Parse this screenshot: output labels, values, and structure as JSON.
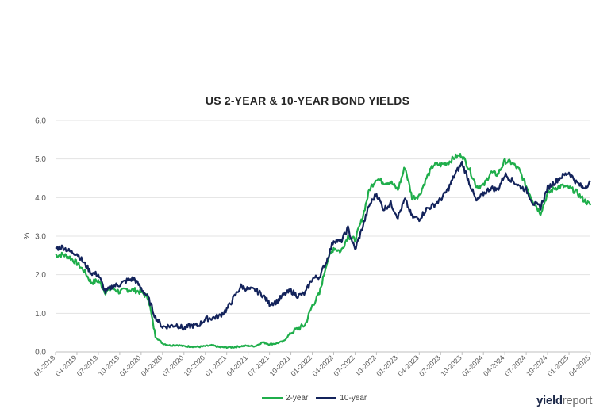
{
  "chart_data": {
    "type": "line",
    "title": "US 2-YEAR & 10-YEAR BOND YIELDS",
    "ylabel": "%",
    "xlabel": "",
    "ylim": [
      0.0,
      6.0
    ],
    "yticks": [
      "0.0",
      "1.0",
      "2.0",
      "3.0",
      "4.0",
      "5.0",
      "6.0"
    ],
    "xlim": [
      "2019-01",
      "2025-04"
    ],
    "xticks": [
      "01-2019",
      "04-2019",
      "07-2019",
      "10-2019",
      "01-2020",
      "04-2020",
      "07-2020",
      "10-2020",
      "01-2021",
      "04-2021",
      "07-2021",
      "10-2021",
      "01-2022",
      "04-2022",
      "07-2022",
      "10-2022",
      "01-2023",
      "04-2023",
      "07-2023",
      "10-2023",
      "01-2024",
      "04-2024",
      "07-2024",
      "10-2024",
      "01-2025",
      "04-2025"
    ],
    "grid": "horizontal",
    "legend_position": "bottom",
    "series": [
      {
        "name": "2-year",
        "color": "#1fae4b",
        "points": [
          [
            "2019-01-01",
            2.5
          ],
          [
            "2019-02-01",
            2.52
          ],
          [
            "2019-03-01",
            2.45
          ],
          [
            "2019-04-01",
            2.3
          ],
          [
            "2019-05-01",
            2.1
          ],
          [
            "2019-06-01",
            1.8
          ],
          [
            "2019-07-01",
            1.85
          ],
          [
            "2019-08-01",
            1.55
          ],
          [
            "2019-09-01",
            1.65
          ],
          [
            "2019-10-01",
            1.55
          ],
          [
            "2019-11-01",
            1.62
          ],
          [
            "2019-12-01",
            1.6
          ],
          [
            "2020-01-01",
            1.55
          ],
          [
            "2020-02-01",
            1.4
          ],
          [
            "2020-03-01",
            0.4
          ],
          [
            "2020-04-01",
            0.22
          ],
          [
            "2020-05-01",
            0.17
          ],
          [
            "2020-06-01",
            0.18
          ],
          [
            "2020-07-01",
            0.15
          ],
          [
            "2020-08-01",
            0.14
          ],
          [
            "2020-09-01",
            0.13
          ],
          [
            "2020-10-01",
            0.15
          ],
          [
            "2020-11-01",
            0.17
          ],
          [
            "2020-12-01",
            0.12
          ],
          [
            "2021-01-01",
            0.12
          ],
          [
            "2021-02-01",
            0.12
          ],
          [
            "2021-03-01",
            0.15
          ],
          [
            "2021-04-01",
            0.16
          ],
          [
            "2021-05-01",
            0.15
          ],
          [
            "2021-06-01",
            0.25
          ],
          [
            "2021-07-01",
            0.2
          ],
          [
            "2021-08-01",
            0.22
          ],
          [
            "2021-09-01",
            0.28
          ],
          [
            "2021-10-01",
            0.5
          ],
          [
            "2021-11-01",
            0.6
          ],
          [
            "2021-12-01",
            0.7
          ],
          [
            "2022-01-01",
            1.2
          ],
          [
            "2022-02-01",
            1.5
          ],
          [
            "2022-03-01",
            2.3
          ],
          [
            "2022-04-01",
            2.7
          ],
          [
            "2022-05-01",
            2.6
          ],
          [
            "2022-06-01",
            3.0
          ],
          [
            "2022-07-01",
            2.9
          ],
          [
            "2022-08-01",
            3.45
          ],
          [
            "2022-09-01",
            4.2
          ],
          [
            "2022-10-01",
            4.5
          ],
          [
            "2022-11-01",
            4.4
          ],
          [
            "2022-12-01",
            4.4
          ],
          [
            "2023-01-01",
            4.2
          ],
          [
            "2023-02-01",
            4.8
          ],
          [
            "2023-03-01",
            4.0
          ],
          [
            "2023-04-01",
            4.05
          ],
          [
            "2023-05-01",
            4.5
          ],
          [
            "2023-06-01",
            4.85
          ],
          [
            "2023-07-01",
            4.85
          ],
          [
            "2023-08-01",
            4.9
          ],
          [
            "2023-09-01",
            5.05
          ],
          [
            "2023-10-01",
            5.1
          ],
          [
            "2023-11-01",
            4.75
          ],
          [
            "2023-12-01",
            4.3
          ],
          [
            "2024-01-01",
            4.3
          ],
          [
            "2024-02-01",
            4.65
          ],
          [
            "2024-03-01",
            4.6
          ],
          [
            "2024-04-01",
            4.95
          ],
          [
            "2024-05-01",
            4.9
          ],
          [
            "2024-06-01",
            4.72
          ],
          [
            "2024-07-01",
            4.3
          ],
          [
            "2024-08-01",
            3.9
          ],
          [
            "2024-09-01",
            3.6
          ],
          [
            "2024-10-01",
            4.1
          ],
          [
            "2024-11-01",
            4.25
          ],
          [
            "2024-12-01",
            4.3
          ],
          [
            "2025-01-01",
            4.25
          ],
          [
            "2025-02-01",
            4.15
          ],
          [
            "2025-03-01",
            3.95
          ],
          [
            "2025-04-01",
            3.8
          ]
        ]
      },
      {
        "name": "10-year",
        "color": "#13235b",
        "points": [
          [
            "2019-01-01",
            2.68
          ],
          [
            "2019-02-01",
            2.72
          ],
          [
            "2019-03-01",
            2.6
          ],
          [
            "2019-04-01",
            2.55
          ],
          [
            "2019-05-01",
            2.3
          ],
          [
            "2019-06-01",
            2.05
          ],
          [
            "2019-07-01",
            2.0
          ],
          [
            "2019-08-01",
            1.55
          ],
          [
            "2019-09-01",
            1.7
          ],
          [
            "2019-10-01",
            1.75
          ],
          [
            "2019-11-01",
            1.85
          ],
          [
            "2019-12-01",
            1.9
          ],
          [
            "2020-01-01",
            1.65
          ],
          [
            "2020-02-01",
            1.4
          ],
          [
            "2020-03-01",
            0.9
          ],
          [
            "2020-04-01",
            0.65
          ],
          [
            "2020-05-01",
            0.67
          ],
          [
            "2020-06-01",
            0.7
          ],
          [
            "2020-07-01",
            0.6
          ],
          [
            "2020-08-01",
            0.68
          ],
          [
            "2020-09-01",
            0.68
          ],
          [
            "2020-10-01",
            0.85
          ],
          [
            "2020-11-01",
            0.88
          ],
          [
            "2020-12-01",
            0.93
          ],
          [
            "2021-01-01",
            1.1
          ],
          [
            "2021-02-01",
            1.4
          ],
          [
            "2021-03-01",
            1.7
          ],
          [
            "2021-04-01",
            1.62
          ],
          [
            "2021-05-01",
            1.6
          ],
          [
            "2021-06-01",
            1.48
          ],
          [
            "2021-07-01",
            1.25
          ],
          [
            "2021-08-01",
            1.3
          ],
          [
            "2021-09-01",
            1.48
          ],
          [
            "2021-10-01",
            1.58
          ],
          [
            "2021-11-01",
            1.45
          ],
          [
            "2021-12-01",
            1.52
          ],
          [
            "2022-01-01",
            1.9
          ],
          [
            "2022-02-01",
            1.95
          ],
          [
            "2022-03-01",
            2.35
          ],
          [
            "2022-04-01",
            2.9
          ],
          [
            "2022-05-01",
            2.85
          ],
          [
            "2022-06-01",
            3.2
          ],
          [
            "2022-07-01",
            2.65
          ],
          [
            "2022-08-01",
            3.2
          ],
          [
            "2022-09-01",
            3.8
          ],
          [
            "2022-10-01",
            4.1
          ],
          [
            "2022-11-01",
            3.7
          ],
          [
            "2022-12-01",
            3.85
          ],
          [
            "2023-01-01",
            3.5
          ],
          [
            "2023-02-01",
            3.95
          ],
          [
            "2023-03-01",
            3.5
          ],
          [
            "2023-04-01",
            3.45
          ],
          [
            "2023-05-01",
            3.7
          ],
          [
            "2023-06-01",
            3.8
          ],
          [
            "2023-07-01",
            3.95
          ],
          [
            "2023-08-01",
            4.2
          ],
          [
            "2023-09-01",
            4.6
          ],
          [
            "2023-10-01",
            4.9
          ],
          [
            "2023-11-01",
            4.4
          ],
          [
            "2023-12-01",
            3.9
          ],
          [
            "2024-01-01",
            4.1
          ],
          [
            "2024-02-01",
            4.25
          ],
          [
            "2024-03-01",
            4.2
          ],
          [
            "2024-04-01",
            4.6
          ],
          [
            "2024-05-01",
            4.45
          ],
          [
            "2024-06-01",
            4.3
          ],
          [
            "2024-07-01",
            4.2
          ],
          [
            "2024-08-01",
            3.85
          ],
          [
            "2024-09-01",
            3.75
          ],
          [
            "2024-10-01",
            4.25
          ],
          [
            "2024-11-01",
            4.4
          ],
          [
            "2024-12-01",
            4.55
          ],
          [
            "2025-01-01",
            4.65
          ],
          [
            "2025-02-01",
            4.4
          ],
          [
            "2025-03-01",
            4.25
          ],
          [
            "2025-04-01",
            4.4
          ]
        ]
      }
    ]
  },
  "legend": {
    "items": [
      {
        "label": "2-year",
        "color": "#1fae4b"
      },
      {
        "label": "10-year",
        "color": "#13235b"
      }
    ]
  },
  "logo": {
    "part1": "yield",
    "part2": "report",
    "icon": "yieldreport-logo"
  }
}
